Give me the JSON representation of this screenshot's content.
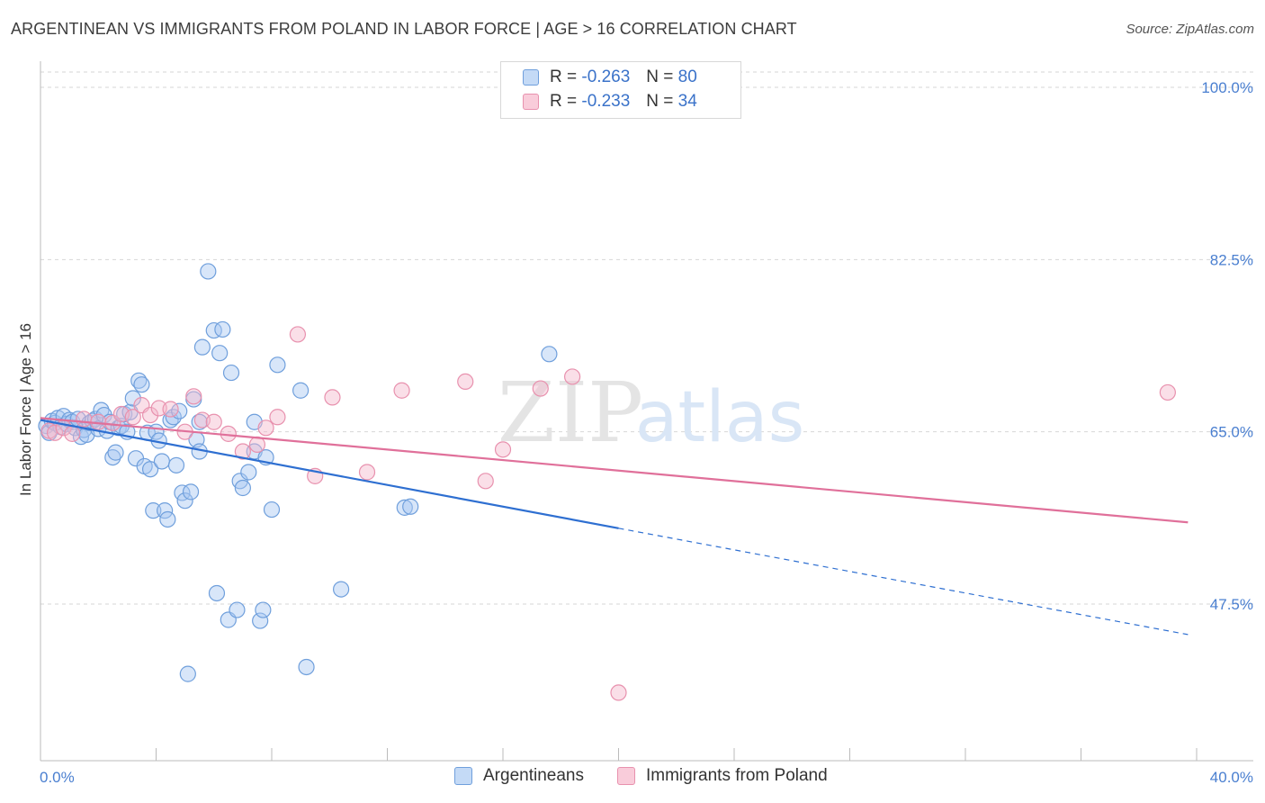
{
  "header": {
    "title": "ARGENTINEAN VS IMMIGRANTS FROM POLAND IN LABOR FORCE | AGE > 16 CORRELATION CHART",
    "source": "Source: ZipAtlas.com"
  },
  "watermark": {
    "zip": "ZIP",
    "atlas": "atlas"
  },
  "legend": {
    "r_label": "R =",
    "n_label": "N =",
    "entries": [
      {
        "r": "-0.263",
        "n": "80"
      },
      {
        "r": "-0.233",
        "n": "34"
      }
    ]
  },
  "colors": {
    "blue_fill": "#a9c8f2",
    "blue_stroke": "#6f9fdc",
    "blue_line": "#2e6fd1",
    "pink_fill": "#f5b8cc",
    "pink_stroke": "#e891ae",
    "pink_line": "#e0709a",
    "tick_text": "#4a7fd0",
    "grid": "#d6d6d6"
  },
  "chart_data": {
    "type": "scatter",
    "title": "ARGENTINEAN VS IMMIGRANTS FROM POLAND IN LABOR FORCE | AGE > 16 CORRELATION CHART",
    "ylabel": "In Labor Force | Age > 16",
    "xlabel": "",
    "xlim": [
      0,
      40
    ],
    "ylim": [
      35,
      100
    ],
    "x_tick_labels": [
      "0.0%",
      "40.0%"
    ],
    "y_ticks": [
      {
        "value": 100,
        "label": "100.0%"
      },
      {
        "value": 82.5,
        "label": "82.5%"
      },
      {
        "value": 65,
        "label": "65.0%"
      },
      {
        "value": 47.5,
        "label": "47.5%"
      }
    ],
    "grid": "horizontal dashed",
    "legend_position": "top-center",
    "series": [
      {
        "name": "Argentineans",
        "r": -0.263,
        "n": 80,
        "trend": {
          "x0": 0,
          "y0": 66.2,
          "x1": 20,
          "y1": 55.2,
          "dashed_to_x": 39.7,
          "dashed_to_y": 44.4
        },
        "points": [
          [
            0.2,
            65.6
          ],
          [
            0.3,
            64.9
          ],
          [
            0.4,
            66.1
          ],
          [
            0.5,
            65.9
          ],
          [
            0.6,
            66.4
          ],
          [
            0.7,
            65.5
          ],
          [
            0.8,
            66.6
          ],
          [
            0.9,
            65.8
          ],
          [
            1.0,
            66.2
          ],
          [
            1.1,
            66.0
          ],
          [
            1.2,
            65.4
          ],
          [
            1.3,
            66.3
          ],
          [
            1.4,
            64.5
          ],
          [
            1.5,
            65.2
          ],
          [
            1.6,
            64.7
          ],
          [
            1.7,
            65.9
          ],
          [
            1.8,
            66.1
          ],
          [
            1.9,
            66.3
          ],
          [
            2.0,
            65.3
          ],
          [
            2.1,
            67.2
          ],
          [
            2.2,
            66.7
          ],
          [
            2.3,
            65.1
          ],
          [
            2.4,
            66.0
          ],
          [
            2.5,
            62.4
          ],
          [
            2.6,
            62.9
          ],
          [
            2.7,
            65.4
          ],
          [
            2.8,
            65.6
          ],
          [
            2.9,
            66.8
          ],
          [
            3.0,
            65.0
          ],
          [
            3.1,
            67.0
          ],
          [
            3.2,
            68.4
          ],
          [
            3.3,
            62.3
          ],
          [
            3.4,
            70.2
          ],
          [
            3.5,
            69.8
          ],
          [
            3.6,
            61.5
          ],
          [
            3.7,
            64.9
          ],
          [
            3.8,
            61.2
          ],
          [
            3.9,
            57.0
          ],
          [
            4.0,
            65.0
          ],
          [
            4.1,
            64.1
          ],
          [
            4.2,
            62.0
          ],
          [
            4.3,
            57.0
          ],
          [
            4.4,
            56.1
          ],
          [
            4.5,
            66.2
          ],
          [
            4.6,
            66.5
          ],
          [
            4.7,
            61.6
          ],
          [
            4.8,
            67.1
          ],
          [
            4.9,
            58.8
          ],
          [
            5.0,
            58.0
          ],
          [
            5.1,
            40.4
          ],
          [
            5.2,
            58.9
          ],
          [
            5.3,
            68.3
          ],
          [
            5.4,
            64.2
          ],
          [
            5.5,
            63.0
          ],
          [
            5.6,
            73.6
          ],
          [
            5.8,
            81.3
          ],
          [
            6.0,
            75.3
          ],
          [
            6.1,
            48.6
          ],
          [
            6.2,
            73.0
          ],
          [
            6.3,
            75.4
          ],
          [
            6.5,
            45.9
          ],
          [
            6.6,
            71.0
          ],
          [
            6.8,
            46.9
          ],
          [
            6.9,
            60.0
          ],
          [
            7.0,
            59.3
          ],
          [
            7.2,
            60.9
          ],
          [
            7.4,
            63.0
          ],
          [
            7.6,
            45.8
          ],
          [
            7.7,
            46.9
          ],
          [
            7.8,
            62.4
          ],
          [
            8.0,
            57.1
          ],
          [
            8.2,
            71.8
          ],
          [
            9.0,
            69.2
          ],
          [
            9.2,
            41.1
          ],
          [
            10.4,
            49.0
          ],
          [
            12.6,
            57.3
          ],
          [
            12.8,
            57.4
          ],
          [
            17.6,
            72.9
          ],
          [
            7.4,
            66.0
          ],
          [
            5.5,
            66.0
          ]
        ]
      },
      {
        "name": "Immigrants from Poland",
        "r": -0.233,
        "n": 34,
        "trend": {
          "x0": 0,
          "y0": 66.4,
          "x1": 39.7,
          "y1": 55.8
        },
        "points": [
          [
            0.3,
            65.1
          ],
          [
            0.5,
            64.9
          ],
          [
            0.8,
            65.4
          ],
          [
            1.1,
            64.8
          ],
          [
            1.5,
            66.3
          ],
          [
            2.0,
            66.0
          ],
          [
            2.5,
            65.9
          ],
          [
            2.8,
            66.8
          ],
          [
            3.2,
            66.5
          ],
          [
            3.5,
            67.7
          ],
          [
            3.8,
            66.7
          ],
          [
            4.1,
            67.4
          ],
          [
            4.5,
            67.3
          ],
          [
            5.0,
            65.0
          ],
          [
            5.3,
            68.6
          ],
          [
            5.6,
            66.2
          ],
          [
            6.0,
            66.0
          ],
          [
            6.5,
            64.8
          ],
          [
            7.0,
            63.0
          ],
          [
            7.5,
            63.7
          ],
          [
            7.8,
            65.4
          ],
          [
            8.2,
            66.5
          ],
          [
            8.9,
            74.9
          ],
          [
            9.5,
            60.5
          ],
          [
            10.1,
            68.5
          ],
          [
            11.3,
            60.9
          ],
          [
            12.5,
            69.2
          ],
          [
            14.7,
            70.1
          ],
          [
            15.4,
            60.0
          ],
          [
            16.0,
            63.2
          ],
          [
            17.3,
            69.4
          ],
          [
            18.4,
            70.6
          ],
          [
            20.0,
            38.5
          ],
          [
            39.0,
            69.0
          ]
        ]
      }
    ]
  }
}
